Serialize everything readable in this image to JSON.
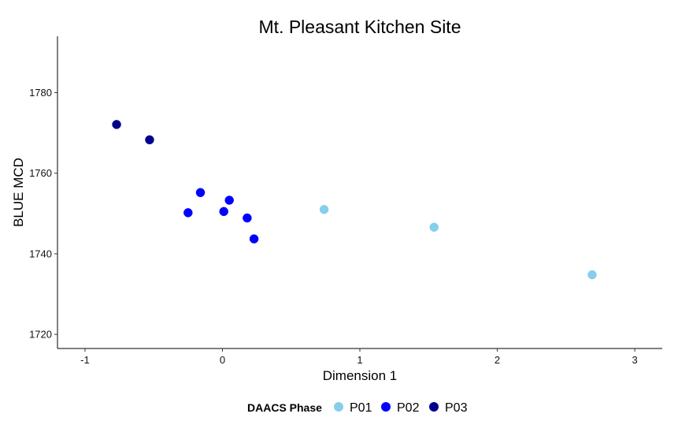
{
  "chart_data": {
    "type": "scatter",
    "title": "Mt. Pleasant Kitchen Site",
    "xlabel": "Dimension 1",
    "ylabel": "BLUE MCD",
    "xlim": [
      -1.2,
      3.2
    ],
    "ylim": [
      1716.5,
      1794
    ],
    "xticks": [
      -1,
      0,
      1,
      2,
      3
    ],
    "xtick_labels": [
      "-1",
      "0",
      "1",
      "2",
      "3"
    ],
    "yticks": [
      1720,
      1740,
      1760,
      1780
    ],
    "ytick_labels": [
      "1720",
      "1740",
      "1760",
      "1780"
    ],
    "grid": false,
    "legend": {
      "title": "DAACS Phase",
      "position": "bottom"
    },
    "series": [
      {
        "name": "P01",
        "color": "#87ceeb",
        "points": [
          {
            "x": 0.74,
            "y": 1751.0
          },
          {
            "x": 1.54,
            "y": 1746.6
          },
          {
            "x": 2.69,
            "y": 1734.8
          }
        ]
      },
      {
        "name": "P02",
        "color": "#0000ff",
        "points": [
          {
            "x": -0.25,
            "y": 1750.2
          },
          {
            "x": -0.16,
            "y": 1755.2
          },
          {
            "x": 0.01,
            "y": 1750.5
          },
          {
            "x": 0.05,
            "y": 1753.3
          },
          {
            "x": 0.18,
            "y": 1748.9
          },
          {
            "x": 0.23,
            "y": 1743.7
          }
        ]
      },
      {
        "name": "P03",
        "color": "#00008b",
        "points": [
          {
            "x": -0.77,
            "y": 1772.1
          },
          {
            "x": -0.53,
            "y": 1768.3
          }
        ]
      }
    ]
  }
}
